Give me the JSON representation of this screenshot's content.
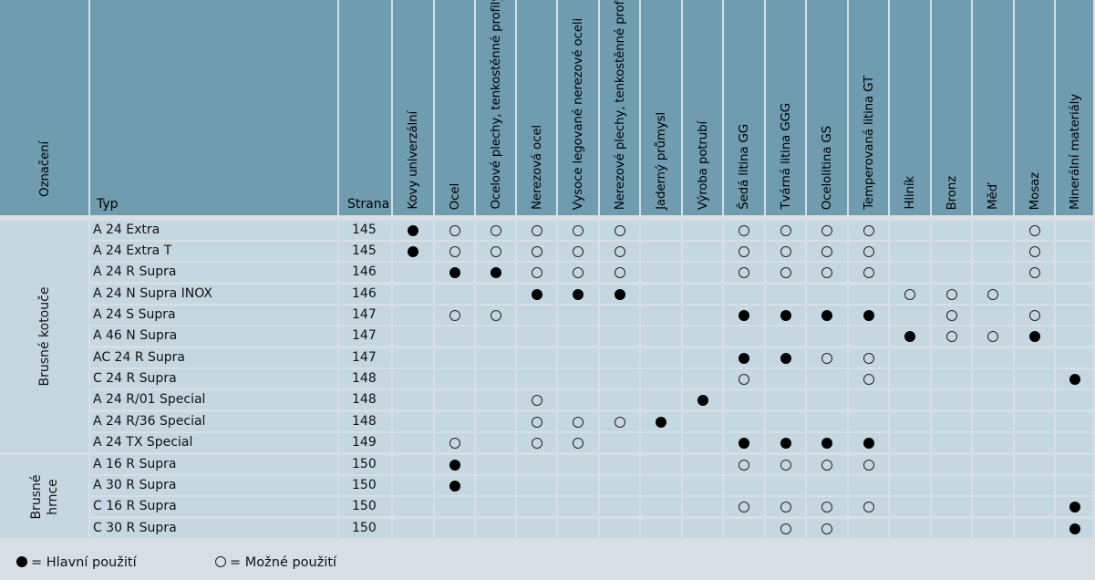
{
  "header": {
    "oznaceni": "Označení",
    "typ": "Typ",
    "strana": "Strana",
    "materials": [
      "Kovy univerzální",
      "Ocel",
      "Ocelové plechy, tenkostěnné profily",
      "Nerezová ocel",
      "Vysoce legované nerezové oceli",
      "Nerezové plechy, tenkostěnné profily",
      "Jaderný průmysl",
      "Výroba potrubí",
      "Šedá litina GG",
      "Tvárná litina GGG",
      "Ocelolitina GS",
      "Temperovaná litina GT",
      "Hliník",
      "Bronz",
      "Měď",
      "Mosaz",
      "Minerální materiály"
    ]
  },
  "groups": [
    {
      "name": "Brusné kotouče",
      "rows": [
        0,
        10
      ]
    },
    {
      "name_line1": "Brusné",
      "name_line2": "hrnce",
      "rows": [
        11,
        14
      ]
    }
  ],
  "rows": [
    {
      "typ": "A 24 Extra",
      "strana": "145",
      "marks": [
        "F",
        "E",
        "E",
        "E",
        "E",
        "E",
        "",
        "",
        "E",
        "E",
        "E",
        "E",
        "",
        "",
        "",
        "E",
        ""
      ]
    },
    {
      "typ": "A 24 Extra T",
      "strana": "145",
      "marks": [
        "F",
        "E",
        "E",
        "E",
        "E",
        "E",
        "",
        "",
        "E",
        "E",
        "E",
        "E",
        "",
        "",
        "",
        "E",
        ""
      ]
    },
    {
      "typ": "A 24 R Supra",
      "strana": "146",
      "marks": [
        "",
        "F",
        "F",
        "E",
        "E",
        "E",
        "",
        "",
        "E",
        "E",
        "E",
        "E",
        "",
        "",
        "",
        "E",
        ""
      ]
    },
    {
      "typ": "A 24 N Supra INOX",
      "strana": "146",
      "marks": [
        "",
        "",
        "",
        "F",
        "F",
        "F",
        "",
        "",
        "",
        "",
        "",
        "",
        "E",
        "E",
        "E",
        "",
        ""
      ]
    },
    {
      "typ": "A 24 S Supra",
      "strana": "147",
      "marks": [
        "",
        "E",
        "E",
        "",
        "",
        "",
        "",
        "",
        "F",
        "F",
        "F",
        "F",
        "",
        "E",
        "",
        "E",
        ""
      ]
    },
    {
      "typ": "A 46 N Supra",
      "strana": "147",
      "marks": [
        "",
        "",
        "",
        "",
        "",
        "",
        "",
        "",
        "",
        "",
        "",
        "",
        "F",
        "E",
        "E",
        "F",
        ""
      ]
    },
    {
      "typ": "AC 24 R Supra",
      "strana": "147",
      "marks": [
        "",
        "",
        "",
        "",
        "",
        "",
        "",
        "",
        "F",
        "F",
        "E",
        "E",
        "",
        "",
        "",
        "",
        ""
      ]
    },
    {
      "typ": "C 24 R Supra",
      "strana": "148",
      "marks": [
        "",
        "",
        "",
        "",
        "",
        "",
        "",
        "",
        "E",
        "",
        "",
        "E",
        "",
        "",
        "",
        "",
        "F"
      ]
    },
    {
      "typ": "A 24 R/01 Special",
      "strana": "148",
      "marks": [
        "",
        "",
        "",
        "E",
        "",
        "",
        "",
        "F",
        "",
        "",
        "",
        "",
        "",
        "",
        "",
        "",
        ""
      ]
    },
    {
      "typ": "A 24 R/36 Special",
      "strana": "148",
      "marks": [
        "",
        "",
        "",
        "E",
        "E",
        "E",
        "F",
        "",
        "",
        "",
        "",
        "",
        "",
        "",
        "",
        "",
        ""
      ]
    },
    {
      "typ": "A 24 TX Special",
      "strana": "149",
      "marks": [
        "",
        "E",
        "",
        "E",
        "E",
        "",
        "",
        "",
        "F",
        "F",
        "F",
        "F",
        "",
        "",
        "",
        "",
        ""
      ]
    },
    {
      "typ": "A 16 R Supra",
      "strana": "150",
      "marks": [
        "",
        "F",
        "",
        "",
        "",
        "",
        "",
        "",
        "E",
        "E",
        "E",
        "E",
        "",
        "",
        "",
        "",
        ""
      ]
    },
    {
      "typ": "A 30 R Supra",
      "strana": "150",
      "marks": [
        "",
        "F",
        "",
        "",
        "",
        "",
        "",
        "",
        "",
        "",
        "",
        "",
        "",
        "",
        "",
        "",
        ""
      ]
    },
    {
      "typ": "C 16 R Supra",
      "strana": "150",
      "marks": [
        "",
        "",
        "",
        "",
        "",
        "",
        "",
        "",
        "E",
        "E",
        "E",
        "E",
        "",
        "",
        "",
        "",
        "F"
      ]
    },
    {
      "typ": "C 30 R Supra",
      "strana": "150",
      "marks": [
        "",
        "",
        "",
        "",
        "",
        "",
        "",
        "",
        "",
        "E",
        "E",
        "",
        "",
        "",
        "",
        "",
        "F"
      ]
    }
  ],
  "legend": {
    "main_label": "= Hlavní použití",
    "possible_label": "= Možné použití"
  }
}
